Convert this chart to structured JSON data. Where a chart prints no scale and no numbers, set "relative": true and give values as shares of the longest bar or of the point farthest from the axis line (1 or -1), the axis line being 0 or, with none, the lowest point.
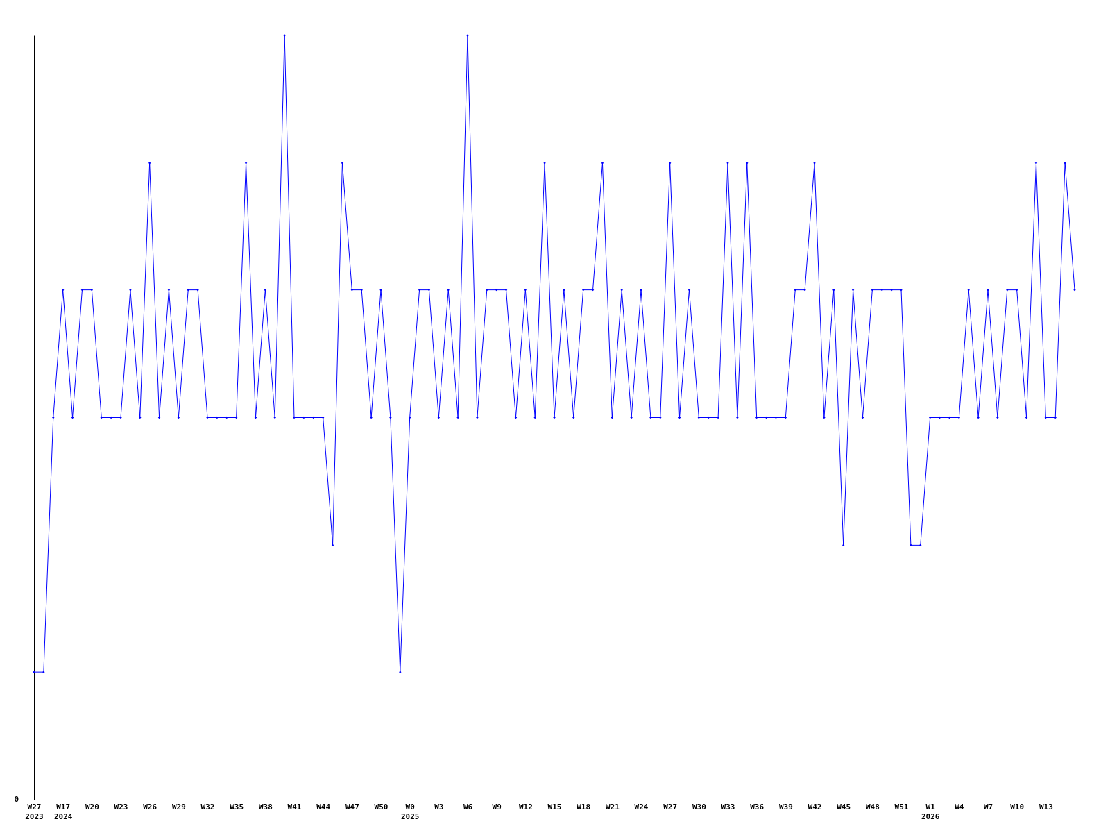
{
  "chart_data": {
    "type": "line",
    "relative": true,
    "marker": "diamond",
    "annotations": [
      "0"
    ],
    "categories": [
      "W27\n2023",
      null,
      null,
      "W17\n2024",
      null,
      null,
      "W20",
      null,
      null,
      "W23",
      null,
      null,
      "W26",
      null,
      null,
      "W29",
      null,
      null,
      "W32",
      null,
      null,
      "W35",
      null,
      null,
      "W38",
      null,
      null,
      "W41",
      null,
      null,
      "W44",
      null,
      null,
      "W47",
      null,
      null,
      "W50",
      null,
      null,
      "W0\n2025",
      null,
      null,
      "W3",
      null,
      null,
      "W6",
      null,
      null,
      "W9",
      null,
      null,
      "W12",
      null,
      null,
      "W15",
      null,
      null,
      "W18",
      null,
      null,
      "W21",
      null,
      null,
      "W24",
      null,
      null,
      "W27",
      null,
      null,
      "W30",
      null,
      null,
      "W33",
      null,
      null,
      "W36",
      null,
      null,
      "W39",
      null,
      null,
      "W42",
      null,
      null,
      "W45",
      null,
      null,
      "W48",
      null,
      null,
      "W51",
      null,
      null,
      "W1\n2026",
      null,
      null,
      "W4",
      null,
      null,
      "W7",
      null,
      null,
      "W10",
      null,
      null,
      "W13",
      null,
      null,
      null
    ],
    "series": [
      {
        "color": "#0000ff",
        "values": [
          0.167,
          0.167,
          0.5,
          0.667,
          0.5,
          0.667,
          0.667,
          0.5,
          0.5,
          0.5,
          0.667,
          0.5,
          0.833,
          0.5,
          0.667,
          0.5,
          0.667,
          0.667,
          0.5,
          0.5,
          0.5,
          0.5,
          0.833,
          0.5,
          0.667,
          0.5,
          1,
          0.5,
          0.5,
          0.5,
          0.5,
          0.333,
          0.833,
          0.667,
          0.667,
          0.5,
          0.667,
          0.5,
          0.167,
          0.5,
          0.667,
          0.667,
          0.5,
          0.667,
          0.5,
          1,
          0.5,
          0.667,
          0.667,
          0.667,
          0.5,
          0.667,
          0.5,
          0.833,
          0.5,
          0.667,
          0.5,
          0.667,
          0.667,
          0.833,
          0.5,
          0.667,
          0.5,
          0.667,
          0.5,
          0.5,
          0.833,
          0.5,
          0.667,
          0.5,
          0.5,
          0.5,
          0.833,
          0.5,
          0.833,
          0.5,
          0.5,
          0.5,
          0.5,
          0.667,
          0.667,
          0.833,
          0.5,
          0.667,
          0.333,
          0.667,
          0.5,
          0.667,
          0.667,
          0.667,
          0.667,
          0.333,
          0.333,
          0.5,
          0.5,
          0.5,
          0.5,
          0.667,
          0.5,
          0.667,
          0.5,
          0.667,
          0.667,
          0.5,
          0.833,
          0.5,
          0.5,
          0.833,
          0.667
        ]
      }
    ]
  }
}
